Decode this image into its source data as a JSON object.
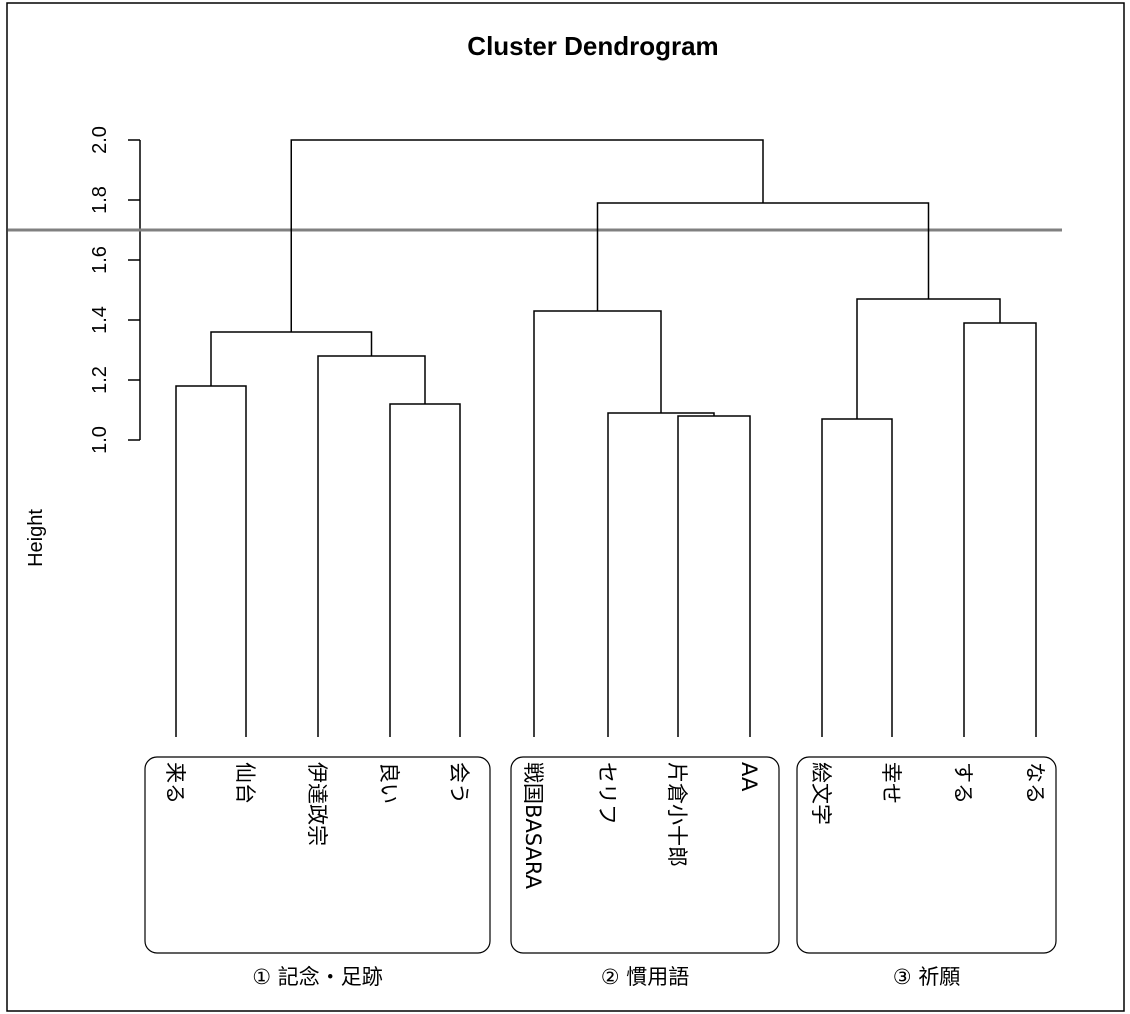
{
  "chart_data": {
    "type": "dendrogram",
    "title": "Cluster Dendrogram",
    "ylabel": "Height",
    "yticks": [
      "1.0",
      "1.2",
      "1.4",
      "1.6",
      "1.8",
      "2.0"
    ],
    "ylim": [
      1.0,
      2.0
    ],
    "cut_height": 1.7,
    "leaves": [
      "来る",
      "仙台",
      "伊達政宗",
      "良い",
      "会う",
      "戦国BASARA",
      "セリフ",
      "片倉小十郎",
      "AA",
      "絵文字",
      "幸せ",
      "する",
      "なる"
    ],
    "merges": [
      {
        "left": [
          "会う"
        ],
        "right": [
          "良い"
        ],
        "height": 1.12
      },
      {
        "left": [
          "来る"
        ],
        "right": [
          "仙台"
        ],
        "height": 1.18
      },
      {
        "left": [
          "伊達政宗"
        ],
        "right": [
          "良い",
          "会う"
        ],
        "height": 1.28
      },
      {
        "left": [
          "来る",
          "仙台"
        ],
        "right": [
          "伊達政宗",
          "良い",
          "会う"
        ],
        "height": 1.36
      },
      {
        "left": [
          "絵文字"
        ],
        "right": [
          "幸せ"
        ],
        "height": 1.07
      },
      {
        "left": [
          "片倉小十郎"
        ],
        "right": [
          "AA"
        ],
        "height": 1.08
      },
      {
        "left": [
          "セリフ"
        ],
        "right": [
          "片倉小十郎",
          "AA"
        ],
        "height": 1.09
      },
      {
        "left": [
          "する"
        ],
        "right": [
          "なる"
        ],
        "height": 1.39
      },
      {
        "left": [
          "戦国BASARA"
        ],
        "right": [
          "セリフ",
          "片倉小十郎",
          "AA"
        ],
        "height": 1.43
      },
      {
        "left": [
          "絵文字",
          "幸せ"
        ],
        "right": [
          "する",
          "なる"
        ],
        "height": 1.47
      },
      {
        "left": [
          "戦国BASARA",
          "セリフ",
          "片倉小十郎",
          "AA"
        ],
        "right": [
          "絵文字",
          "幸せ",
          "する",
          "なる"
        ],
        "height": 1.79
      },
      {
        "left": [
          "来る",
          "仙台",
          "伊達政宗",
          "良い",
          "会う"
        ],
        "right": [
          "戦国BASARA",
          "セリフ",
          "片倉小十郎",
          "AA",
          "絵文字",
          "幸せ",
          "する",
          "なる"
        ],
        "height": 2.0
      }
    ],
    "groups": [
      {
        "label": "① 記念・足跡",
        "leaves": [
          "来る",
          "仙台",
          "伊達政宗",
          "良い",
          "会う"
        ]
      },
      {
        "label": "② 慣用語",
        "leaves": [
          "戦国BASARA",
          "セリフ",
          "片倉小十郎",
          "AA"
        ]
      },
      {
        "label": "③ 祈願",
        "leaves": [
          "絵文字",
          "幸せ",
          "する",
          "なる"
        ]
      }
    ]
  }
}
